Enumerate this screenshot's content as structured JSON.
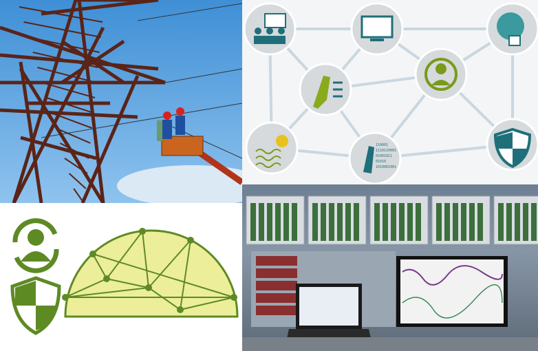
{
  "binary_icon": {
    "lines": [
      "110001",
      "1110110001",
      "01001011",
      "01010",
      "1010001001"
    ]
  }
}
